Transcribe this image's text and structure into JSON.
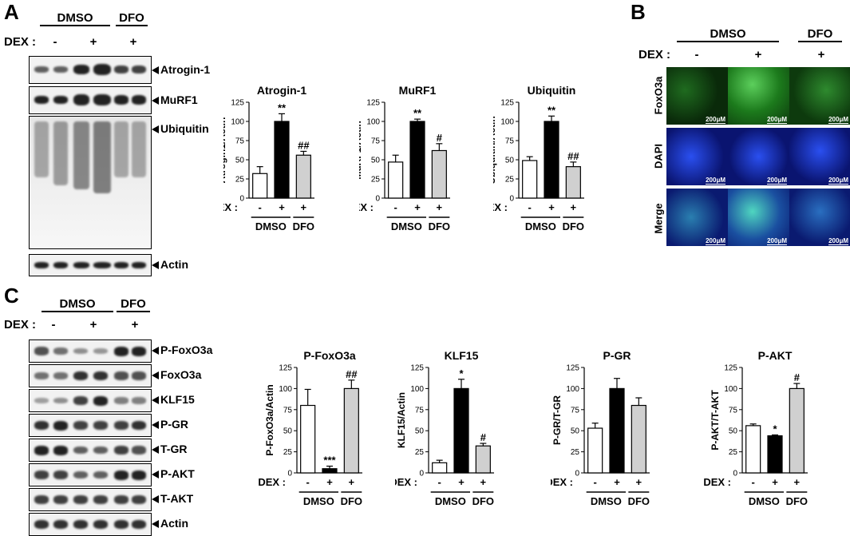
{
  "panel_letters": {
    "a": "A",
    "b": "B",
    "c": "C"
  },
  "groups": {
    "dmso": "DMSO",
    "dfo": "DFO"
  },
  "dex_label": "DEX :",
  "signs": {
    "minus": "-",
    "plus": "+"
  },
  "blot_labels_a": [
    "Atrogin-1",
    "MuRF1",
    "Ubiquitin",
    "Actin"
  ],
  "blot_labels_c": [
    "P-FoxO3a",
    "FoxO3a",
    "KLF15",
    "P-GR",
    "T-GR",
    "P-AKT",
    "T-AKT",
    "Actin"
  ],
  "micro_rows": [
    "FoxO3a",
    "DAPI",
    "Merge"
  ],
  "scale_bar": "200μM",
  "colors": {
    "dmso_minus": "#ffffff",
    "dmso_plus": "#000000",
    "dfo_plus": "#d0d0d0",
    "foxo_green": "#2fa82f",
    "dapi_blue": "#1f3ed6"
  },
  "chart_data": [
    {
      "type": "bar",
      "title": "Atrogin-1",
      "ylabel": "Atrogin1/Actin",
      "ylim": [
        0,
        125
      ],
      "yticks": [
        0,
        25,
        50,
        75,
        100,
        125
      ],
      "categories": [
        "DMSO -",
        "DMSO +",
        "DFO +"
      ],
      "values": [
        32,
        100,
        56
      ],
      "errors": [
        9,
        10,
        5
      ],
      "annotations": [
        "",
        "**",
        "##"
      ]
    },
    {
      "type": "bar",
      "title": "MuRF1",
      "ylabel": "MuRF1/Actin",
      "ylim": [
        0,
        125
      ],
      "yticks": [
        0,
        25,
        50,
        75,
        100,
        125
      ],
      "categories": [
        "DMSO -",
        "DMSO +",
        "DFO +"
      ],
      "values": [
        47,
        100,
        62
      ],
      "errors": [
        9,
        3,
        9
      ],
      "annotations": [
        "",
        "**",
        "#"
      ]
    },
    {
      "type": "bar",
      "title": "Ubiquitin",
      "ylabel": "Ubiquitin/Actin",
      "ylim": [
        0,
        125
      ],
      "yticks": [
        0,
        25,
        50,
        75,
        100,
        125
      ],
      "categories": [
        "DMSO -",
        "DMSO +",
        "DFO +"
      ],
      "values": [
        49,
        100,
        41
      ],
      "errors": [
        5,
        7,
        6
      ],
      "annotations": [
        "",
        "**",
        "##"
      ]
    },
    {
      "type": "bar",
      "title": "P-FoxO3a",
      "ylabel": "P-FoxO3a/Actin",
      "ylim": [
        0,
        125
      ],
      "yticks": [
        0,
        25,
        50,
        75,
        100,
        125
      ],
      "categories": [
        "DMSO -",
        "DMSO +",
        "DFO +"
      ],
      "values": [
        80,
        5,
        100
      ],
      "errors": [
        19,
        3,
        10
      ],
      "annotations": [
        "",
        "***",
        "##"
      ]
    },
    {
      "type": "bar",
      "title": "KLF15",
      "ylabel": "KLF15/Actin",
      "ylim": [
        0,
        125
      ],
      "yticks": [
        0,
        25,
        50,
        75,
        100,
        125
      ],
      "categories": [
        "DMSO -",
        "DMSO +",
        "DFO +"
      ],
      "values": [
        12,
        100,
        32
      ],
      "errors": [
        3,
        11,
        3
      ],
      "annotations": [
        "",
        "*",
        "#"
      ]
    },
    {
      "type": "bar",
      "title": "P-GR",
      "ylabel": "P-GR/T-GR",
      "ylim": [
        0,
        125
      ],
      "yticks": [
        0,
        25,
        50,
        75,
        100,
        125
      ],
      "categories": [
        "DMSO -",
        "DMSO +",
        "DFO +"
      ],
      "values": [
        53,
        100,
        80
      ],
      "errors": [
        6,
        12,
        9
      ],
      "annotations": [
        "",
        "",
        ""
      ]
    },
    {
      "type": "bar",
      "title": "P-AKT",
      "ylabel": "P-AKT/T-AKT",
      "ylim": [
        0,
        125
      ],
      "yticks": [
        0,
        25,
        50,
        75,
        100,
        125
      ],
      "categories": [
        "DMSO -",
        "DMSO +",
        "DFO +"
      ],
      "values": [
        56,
        44,
        100
      ],
      "errors": [
        2,
        1,
        6
      ],
      "annotations": [
        "",
        "*",
        "#"
      ]
    }
  ]
}
